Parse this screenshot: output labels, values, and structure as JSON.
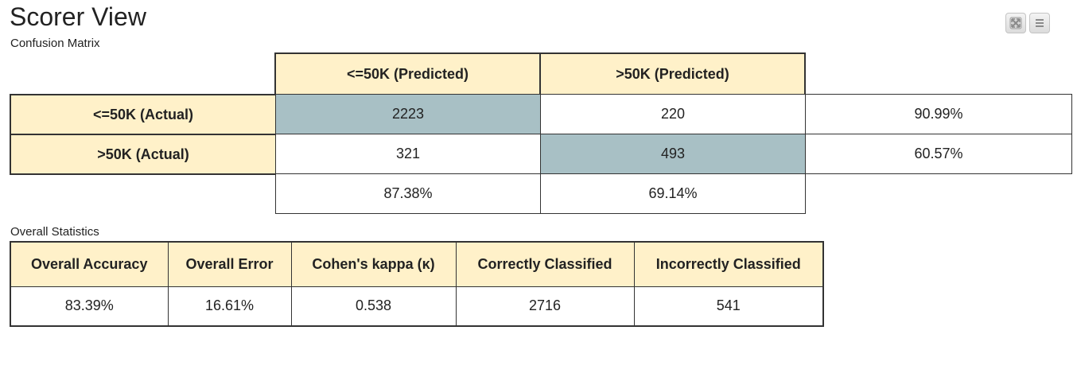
{
  "header": {
    "title": "Scorer View",
    "subtitle": "Confusion Matrix",
    "toolbar": [
      {
        "icon": "expand-icon"
      },
      {
        "icon": "menu-icon"
      }
    ]
  },
  "confusion_matrix": {
    "col_headers": [
      "<=50K (Predicted)",
      ">50K (Predicted)"
    ],
    "rows": [
      {
        "label": "<=50K (Actual)",
        "values": [
          "2223",
          "220"
        ],
        "row_rate": "90.99%"
      },
      {
        "label": ">50K (Actual)",
        "values": [
          "321",
          "493"
        ],
        "row_rate": "60.57%"
      }
    ],
    "col_rates": [
      "87.38%",
      "69.14%"
    ]
  },
  "overall_statistics": {
    "label": "Overall Statistics",
    "headers": [
      "Overall Accuracy",
      "Overall Error",
      "Cohen's kappa (κ)",
      "Correctly Classified",
      "Incorrectly Classified"
    ],
    "values": [
      "83.39%",
      "16.61%",
      "0.538",
      "2716",
      "541"
    ]
  },
  "colors": {
    "header_bg": "#fff1c9",
    "diagonal_bg": "#a8c0c5",
    "border": "#333333"
  }
}
